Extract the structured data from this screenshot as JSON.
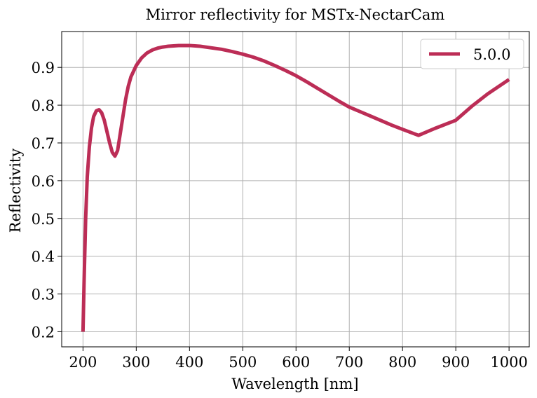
{
  "chart_data": {
    "type": "line",
    "title": "Mirror reflectivity for MSTx-NectarCam",
    "xlabel": "Wavelength [nm]",
    "ylabel": "Reflectivity",
    "xlim": [
      160,
      1038
    ],
    "ylim": [
      0.16,
      0.995
    ],
    "xticks": [
      200,
      300,
      400,
      500,
      600,
      700,
      800,
      900,
      1000
    ],
    "yticks": [
      0.2,
      0.3,
      0.4,
      0.5,
      0.6,
      0.7,
      0.8,
      0.9
    ],
    "ytick_labels": [
      "0.2",
      "0.3",
      "0.4",
      "0.5",
      "0.6",
      "0.7",
      "0.8",
      "0.9"
    ],
    "grid": true,
    "legend_position": "top-right",
    "series": [
      {
        "name": "5.0.0",
        "color": "#bc2d56",
        "x": [
          200,
          202,
          205,
          208,
          212,
          216,
          220,
          225,
          230,
          235,
          240,
          245,
          250,
          255,
          260,
          265,
          270,
          275,
          280,
          285,
          290,
          295,
          300,
          310,
          320,
          330,
          340,
          350,
          360,
          370,
          380,
          390,
          400,
          420,
          440,
          460,
          480,
          500,
          520,
          540,
          560,
          580,
          600,
          620,
          640,
          660,
          680,
          700,
          720,
          740,
          760,
          780,
          800,
          830,
          860,
          900,
          930,
          960,
          1000
        ],
        "y": [
          0.2,
          0.33,
          0.5,
          0.61,
          0.69,
          0.74,
          0.77,
          0.785,
          0.788,
          0.78,
          0.76,
          0.73,
          0.7,
          0.675,
          0.665,
          0.68,
          0.725,
          0.77,
          0.815,
          0.85,
          0.875,
          0.89,
          0.905,
          0.925,
          0.938,
          0.946,
          0.951,
          0.954,
          0.956,
          0.957,
          0.958,
          0.958,
          0.958,
          0.956,
          0.952,
          0.948,
          0.942,
          0.935,
          0.927,
          0.917,
          0.905,
          0.892,
          0.878,
          0.862,
          0.845,
          0.828,
          0.811,
          0.795,
          0.783,
          0.771,
          0.759,
          0.747,
          0.736,
          0.72,
          0.738,
          0.76,
          0.797,
          0.83,
          0.868
        ]
      }
    ]
  }
}
